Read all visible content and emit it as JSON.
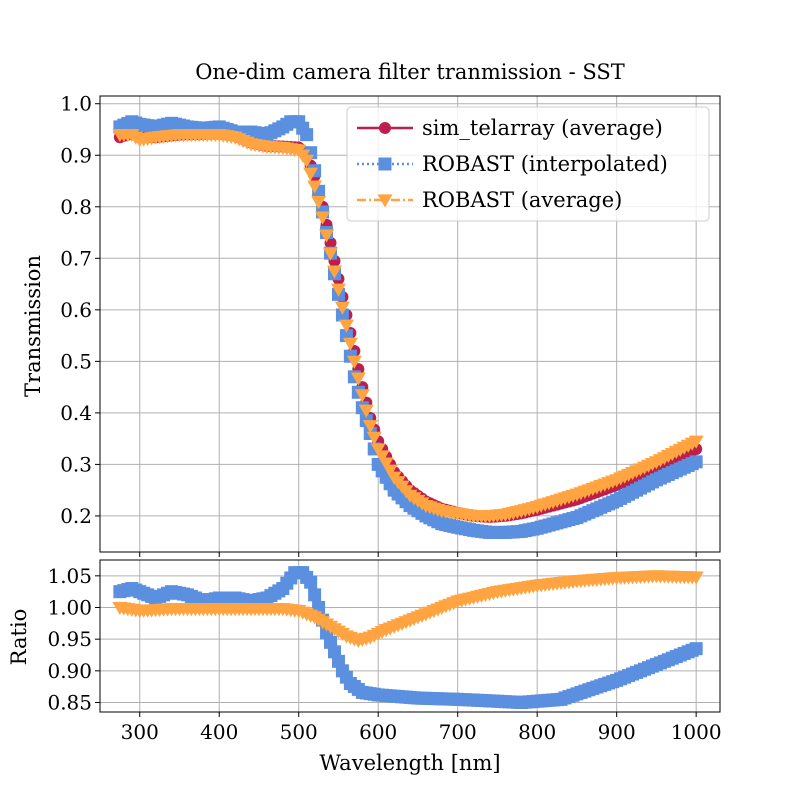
{
  "chart_data": [
    {
      "type": "scatter",
      "title": "One-dim camera filter tranmission - SST",
      "xlabel": "",
      "ylabel": "Transmission",
      "xlim": [
        250,
        1030
      ],
      "ylim": [
        0.13,
        1.015
      ],
      "xticks": [
        300,
        400,
        500,
        600,
        700,
        800,
        900,
        1000
      ],
      "yticks": [
        0.2,
        0.3,
        0.4,
        0.5,
        0.6,
        0.7,
        0.8,
        0.9,
        1.0
      ],
      "ytick_labels": [
        "0.2",
        "0.3",
        "0.4",
        "0.5",
        "0.6",
        "0.7",
        "0.8",
        "0.9",
        "1.0"
      ],
      "grid": true,
      "legend_position": "top-right",
      "x_range": [
        275,
        1000
      ],
      "x_step": 5,
      "series": [
        {
          "name": "sim_telarray (average)",
          "color": "#be1e4d",
          "marker": "circle",
          "linestyle": "solid",
          "knots": [
            [
              275,
              0.935
            ],
            [
              290,
              0.943
            ],
            [
              300,
              0.936
            ],
            [
              320,
              0.935
            ],
            [
              350,
              0.94
            ],
            [
              400,
              0.942
            ],
            [
              420,
              0.938
            ],
            [
              440,
              0.925
            ],
            [
              460,
              0.918
            ],
            [
              480,
              0.917
            ],
            [
              500,
              0.915
            ],
            [
              510,
              0.9
            ],
            [
              520,
              0.86
            ],
            [
              530,
              0.8
            ],
            [
              540,
              0.73
            ],
            [
              550,
              0.66
            ],
            [
              560,
              0.59
            ],
            [
              570,
              0.52
            ],
            [
              580,
              0.45
            ],
            [
              590,
              0.39
            ],
            [
              600,
              0.345
            ],
            [
              620,
              0.285
            ],
            [
              640,
              0.25
            ],
            [
              660,
              0.228
            ],
            [
              680,
              0.214
            ],
            [
              700,
              0.206
            ],
            [
              720,
              0.2
            ],
            [
              740,
              0.198
            ],
            [
              760,
              0.2
            ],
            [
              780,
              0.205
            ],
            [
              800,
              0.212
            ],
            [
              850,
              0.232
            ],
            [
              900,
              0.26
            ],
            [
              950,
              0.29
            ],
            [
              1000,
              0.33
            ]
          ]
        },
        {
          "name": "ROBAST (interpolated)",
          "color": "#5b8fdf",
          "marker": "square",
          "linestyle": "dotted",
          "knots": [
            [
              275,
              0.955
            ],
            [
              290,
              0.965
            ],
            [
              300,
              0.96
            ],
            [
              320,
              0.955
            ],
            [
              340,
              0.962
            ],
            [
              360,
              0.955
            ],
            [
              380,
              0.952
            ],
            [
              400,
              0.955
            ],
            [
              420,
              0.945
            ],
            [
              440,
              0.945
            ],
            [
              460,
              0.94
            ],
            [
              480,
              0.955
            ],
            [
              490,
              0.965
            ],
            [
              500,
              0.965
            ],
            [
              510,
              0.94
            ],
            [
              520,
              0.87
            ],
            [
              530,
              0.79
            ],
            [
              540,
              0.71
            ],
            [
              550,
              0.63
            ],
            [
              560,
              0.55
            ],
            [
              570,
              0.47
            ],
            [
              580,
              0.41
            ],
            [
              590,
              0.36
            ],
            [
              600,
              0.3
            ],
            [
              620,
              0.25
            ],
            [
              640,
              0.22
            ],
            [
              660,
              0.2
            ],
            [
              680,
              0.185
            ],
            [
              700,
              0.178
            ],
            [
              720,
              0.172
            ],
            [
              740,
              0.168
            ],
            [
              760,
              0.168
            ],
            [
              780,
              0.17
            ],
            [
              800,
              0.176
            ],
            [
              850,
              0.197
            ],
            [
              900,
              0.23
            ],
            [
              950,
              0.27
            ],
            [
              1000,
              0.305
            ]
          ]
        },
        {
          "name": "ROBAST (average)",
          "color": "#ffa440",
          "marker": "triangle-down",
          "linestyle": "dashdot",
          "knots": [
            [
              275,
              0.94
            ],
            [
              290,
              0.94
            ],
            [
              300,
              0.93
            ],
            [
              320,
              0.935
            ],
            [
              350,
              0.94
            ],
            [
              400,
              0.94
            ],
            [
              420,
              0.935
            ],
            [
              440,
              0.922
            ],
            [
              460,
              0.917
            ],
            [
              480,
              0.915
            ],
            [
              500,
              0.91
            ],
            [
              510,
              0.89
            ],
            [
              520,
              0.84
            ],
            [
              530,
              0.78
            ],
            [
              540,
              0.71
            ],
            [
              550,
              0.64
            ],
            [
              560,
              0.57
            ],
            [
              570,
              0.5
            ],
            [
              580,
              0.435
            ],
            [
              590,
              0.375
            ],
            [
              600,
              0.33
            ],
            [
              620,
              0.275
            ],
            [
              640,
              0.24
            ],
            [
              660,
              0.22
            ],
            [
              680,
              0.21
            ],
            [
              700,
              0.205
            ],
            [
              720,
              0.2
            ],
            [
              740,
              0.2
            ],
            [
              760,
              0.203
            ],
            [
              780,
              0.21
            ],
            [
              800,
              0.218
            ],
            [
              850,
              0.242
            ],
            [
              900,
              0.27
            ],
            [
              950,
              0.305
            ],
            [
              1000,
              0.345
            ]
          ]
        }
      ]
    },
    {
      "type": "scatter",
      "title": "",
      "xlabel": "Wavelength [nm]",
      "ylabel": "Ratio",
      "xlim": [
        250,
        1030
      ],
      "ylim": [
        0.835,
        1.075
      ],
      "xticks": [
        300,
        400,
        500,
        600,
        700,
        800,
        900,
        1000
      ],
      "xtick_labels": [
        "300",
        "400",
        "500",
        "600",
        "700",
        "800",
        "900",
        "1000"
      ],
      "yticks": [
        0.85,
        0.9,
        0.95,
        1.0,
        1.05
      ],
      "ytick_labels": [
        "0.85",
        "0.90",
        "0.95",
        "1.00",
        "1.05"
      ],
      "grid": true,
      "x_range": [
        275,
        1000
      ],
      "x_step": 5,
      "series": [
        {
          "name": "ROBAST (interpolated)",
          "color": "#5b8fdf",
          "marker": "square",
          "knots": [
            [
              275,
              1.025
            ],
            [
              290,
              1.03
            ],
            [
              300,
              1.025
            ],
            [
              320,
              1.015
            ],
            [
              340,
              1.025
            ],
            [
              360,
              1.02
            ],
            [
              380,
              1.01
            ],
            [
              400,
              1.015
            ],
            [
              420,
              1.015
            ],
            [
              440,
              1.01
            ],
            [
              460,
              1.015
            ],
            [
              480,
              1.03
            ],
            [
              495,
              1.055
            ],
            [
              505,
              1.055
            ],
            [
              515,
              1.04
            ],
            [
              525,
              1.0
            ],
            [
              535,
              0.96
            ],
            [
              545,
              0.93
            ],
            [
              555,
              0.9
            ],
            [
              565,
              0.88
            ],
            [
              580,
              0.866
            ],
            [
              600,
              0.862
            ],
            [
              650,
              0.857
            ],
            [
              700,
              0.855
            ],
            [
              750,
              0.852
            ],
            [
              780,
              0.85
            ],
            [
              800,
              0.852
            ],
            [
              830,
              0.855
            ],
            [
              860,
              0.868
            ],
            [
              900,
              0.885
            ],
            [
              950,
              0.91
            ],
            [
              1000,
              0.935
            ]
          ]
        },
        {
          "name": "ROBAST (average)",
          "color": "#ffa440",
          "marker": "triangle-down",
          "knots": [
            [
              275,
              1.0
            ],
            [
              290,
              0.997
            ],
            [
              300,
              0.995
            ],
            [
              340,
              0.998
            ],
            [
              400,
              0.998
            ],
            [
              440,
              0.998
            ],
            [
              480,
              0.998
            ],
            [
              500,
              0.995
            ],
            [
              520,
              0.985
            ],
            [
              540,
              0.97
            ],
            [
              560,
              0.955
            ],
            [
              575,
              0.948
            ],
            [
              590,
              0.953
            ],
            [
              610,
              0.965
            ],
            [
              650,
              0.985
            ],
            [
              700,
              1.01
            ],
            [
              750,
              1.025
            ],
            [
              800,
              1.035
            ],
            [
              850,
              1.042
            ],
            [
              900,
              1.047
            ],
            [
              950,
              1.05
            ],
            [
              1000,
              1.048
            ]
          ]
        }
      ]
    }
  ]
}
